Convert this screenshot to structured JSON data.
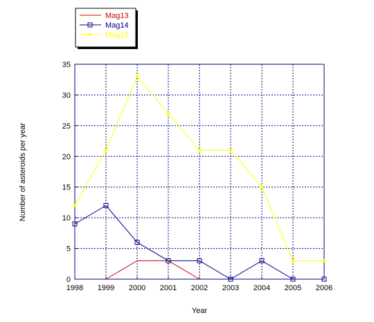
{
  "chart_data": {
    "type": "line",
    "title": "",
    "xlabel": "Year",
    "ylabel": "Number of asteroids per year",
    "x": [
      1998,
      1999,
      2000,
      2001,
      2002,
      2003,
      2004,
      2005,
      2006
    ],
    "xlim": [
      1998,
      2006
    ],
    "ylim": [
      0,
      35
    ],
    "yticks": [
      0,
      5,
      10,
      15,
      20,
      25,
      30,
      35
    ],
    "grid": true,
    "legend_position": "top-left, outside plot",
    "series": [
      {
        "name": "Mag13",
        "color": "#cc0000",
        "marker": "none",
        "x": [
          1999,
          2000,
          2001,
          2002
        ],
        "values": [
          0,
          3,
          3,
          0
        ]
      },
      {
        "name": "Mag14",
        "color": "#000080",
        "marker": "square",
        "x": [
          1998,
          1999,
          2000,
          2001,
          2002,
          2003,
          2004,
          2005,
          2006
        ],
        "values": [
          9,
          12,
          6,
          3,
          3,
          0,
          3,
          0,
          0
        ]
      },
      {
        "name": "Mag15",
        "color": "#ffff00",
        "marker": "circle",
        "x": [
          1998,
          1999,
          2000,
          2001,
          2002,
          2003,
          2004,
          2005,
          2006
        ],
        "values": [
          12,
          21,
          33,
          27,
          21,
          21,
          15,
          3,
          3
        ]
      }
    ]
  }
}
